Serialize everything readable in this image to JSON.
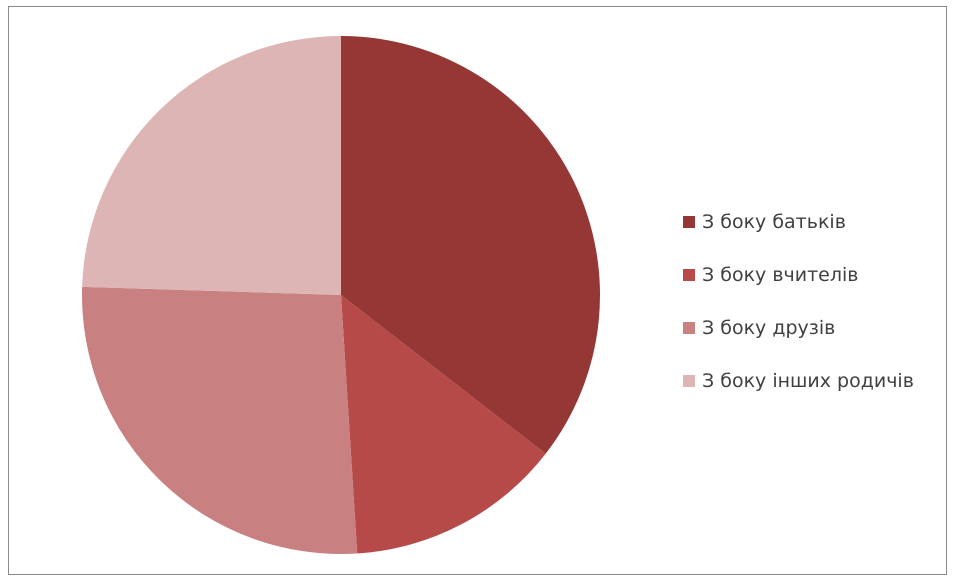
{
  "chart_data": {
    "type": "pie",
    "categories": [
      "З боку батьків",
      "З боку вчителів",
      "З боку друзів",
      "З боку інших родичів"
    ],
    "values": [
      35.5,
      13.5,
      26.5,
      24.5
    ],
    "colors": [
      "#953735",
      "#b54a48",
      "#c98080",
      "#ddb5b4"
    ],
    "start": "12 o'clock",
    "direction": "clockwise",
    "legend": "right",
    "data_labels": false
  }
}
